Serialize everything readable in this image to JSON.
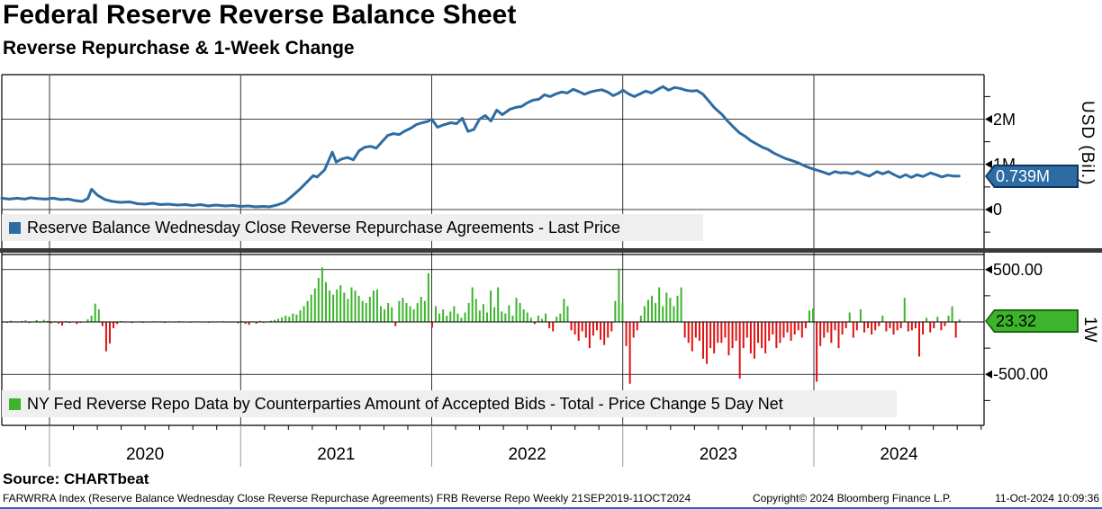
{
  "header": {
    "title": "Federal Reserve Reverse Balance Sheet",
    "subtitle": "Reverse Repurchase & 1-Week Change"
  },
  "source_line": "Source: CHARTbeat",
  "footer": {
    "left": "FARWRRA Index (Reserve Balance Wednesday Close Reverse Repurchase Agreements) FRB Reverse Repo  Weekly 21SEP2019-11OCT2024",
    "copyright": "Copyright© 2024 Bloomberg Finance L.P.",
    "datetime": "11-Oct-2024 10:09:36"
  },
  "colors": {
    "line_blue": "#2d6ca3",
    "badge_blue_border": "#10345c",
    "bar_green": "#3cb42c",
    "badge_green_border": "#1c6a10",
    "bar_red": "#e01111",
    "grid": "#000000",
    "separator": "#3a3a3a",
    "legend_bg": "#efefef",
    "year_tick": "#999999",
    "bottom_edge": "#3461c1"
  },
  "chart_data": [
    {
      "type": "line",
      "legend": "Reserve Balance Wednesday Close Reverse Repurchase Agreements - Last Price",
      "ylabel": "USD (Bil.)",
      "yticks": [
        {
          "label": "2M",
          "value": 2
        },
        {
          "label": "1M",
          "value": 1
        },
        {
          "label": "0",
          "value": 0
        }
      ],
      "minor_yticks": [
        -0.5,
        0.5,
        1.5,
        2.5
      ],
      "ylim": [
        -0.86,
        2.99
      ],
      "x_years": [
        2020,
        2021,
        2022,
        2023,
        2024
      ],
      "x_range_label": "21SEP2019-11OCT2024",
      "grid": true,
      "legend_position": "bottom-left-overlay",
      "last_price_badge": "0.739M",
      "last_value": 0.739,
      "points": [
        [
          2019.75,
          0.25
        ],
        [
          2019.79,
          0.23
        ],
        [
          2019.83,
          0.25
        ],
        [
          2019.87,
          0.23
        ],
        [
          2019.9,
          0.26
        ],
        [
          2019.94,
          0.24
        ],
        [
          2019.98,
          0.23
        ],
        [
          2020.02,
          0.25
        ],
        [
          2020.06,
          0.22
        ],
        [
          2020.1,
          0.23
        ],
        [
          2020.13,
          0.2
        ],
        [
          2020.17,
          0.18
        ],
        [
          2020.2,
          0.24
        ],
        [
          2020.22,
          0.45
        ],
        [
          2020.25,
          0.32
        ],
        [
          2020.29,
          0.22
        ],
        [
          2020.33,
          0.18
        ],
        [
          2020.37,
          0.16
        ],
        [
          2020.42,
          0.17
        ],
        [
          2020.46,
          0.13
        ],
        [
          2020.5,
          0.12
        ],
        [
          2020.54,
          0.14
        ],
        [
          2020.58,
          0.11
        ],
        [
          2020.62,
          0.12
        ],
        [
          2020.67,
          0.1
        ],
        [
          2020.71,
          0.11
        ],
        [
          2020.75,
          0.09
        ],
        [
          2020.79,
          0.11
        ],
        [
          2020.83,
          0.08
        ],
        [
          2020.87,
          0.1
        ],
        [
          2020.92,
          0.08
        ],
        [
          2020.96,
          0.09
        ],
        [
          2021.0,
          0.07
        ],
        [
          2021.04,
          0.08
        ],
        [
          2021.08,
          0.06
        ],
        [
          2021.12,
          0.07
        ],
        [
          2021.15,
          0.06
        ],
        [
          2021.19,
          0.1
        ],
        [
          2021.23,
          0.16
        ],
        [
          2021.27,
          0.3
        ],
        [
          2021.31,
          0.45
        ],
        [
          2021.35,
          0.62
        ],
        [
          2021.38,
          0.75
        ],
        [
          2021.4,
          0.72
        ],
        [
          2021.44,
          0.88
        ],
        [
          2021.48,
          1.27
        ],
        [
          2021.5,
          1.05
        ],
        [
          2021.53,
          1.12
        ],
        [
          2021.56,
          1.15
        ],
        [
          2021.59,
          1.1
        ],
        [
          2021.62,
          1.3
        ],
        [
          2021.65,
          1.38
        ],
        [
          2021.68,
          1.4
        ],
        [
          2021.71,
          1.36
        ],
        [
          2021.74,
          1.5
        ],
        [
          2021.77,
          1.64
        ],
        [
          2021.8,
          1.68
        ],
        [
          2021.83,
          1.66
        ],
        [
          2021.86,
          1.74
        ],
        [
          2021.89,
          1.8
        ],
        [
          2021.92,
          1.88
        ],
        [
          2021.95,
          1.92
        ],
        [
          2021.98,
          1.95
        ],
        [
          2022.0,
          2.0
        ],
        [
          2022.03,
          1.82
        ],
        [
          2022.06,
          1.87
        ],
        [
          2022.1,
          1.92
        ],
        [
          2022.13,
          1.9
        ],
        [
          2022.16,
          2.02
        ],
        [
          2022.19,
          1.73
        ],
        [
          2022.22,
          1.77
        ],
        [
          2022.25,
          2.0
        ],
        [
          2022.28,
          2.08
        ],
        [
          2022.31,
          1.96
        ],
        [
          2022.34,
          2.2
        ],
        [
          2022.37,
          2.1
        ],
        [
          2022.41,
          2.22
        ],
        [
          2022.44,
          2.26
        ],
        [
          2022.47,
          2.28
        ],
        [
          2022.5,
          2.36
        ],
        [
          2022.53,
          2.42
        ],
        [
          2022.56,
          2.44
        ],
        [
          2022.59,
          2.54
        ],
        [
          2022.62,
          2.5
        ],
        [
          2022.65,
          2.56
        ],
        [
          2022.68,
          2.6
        ],
        [
          2022.71,
          2.58
        ],
        [
          2022.74,
          2.66
        ],
        [
          2022.77,
          2.61
        ],
        [
          2022.8,
          2.55
        ],
        [
          2022.83,
          2.6
        ],
        [
          2022.86,
          2.63
        ],
        [
          2022.89,
          2.65
        ],
        [
          2022.92,
          2.6
        ],
        [
          2022.95,
          2.52
        ],
        [
          2022.98,
          2.58
        ],
        [
          2023.0,
          2.64
        ],
        [
          2023.03,
          2.56
        ],
        [
          2023.06,
          2.5
        ],
        [
          2023.09,
          2.56
        ],
        [
          2023.12,
          2.62
        ],
        [
          2023.15,
          2.58
        ],
        [
          2023.18,
          2.65
        ],
        [
          2023.21,
          2.72
        ],
        [
          2023.24,
          2.64
        ],
        [
          2023.27,
          2.7
        ],
        [
          2023.3,
          2.68
        ],
        [
          2023.33,
          2.64
        ],
        [
          2023.36,
          2.62
        ],
        [
          2023.39,
          2.63
        ],
        [
          2023.42,
          2.55
        ],
        [
          2023.45,
          2.4
        ],
        [
          2023.48,
          2.25
        ],
        [
          2023.52,
          2.1
        ],
        [
          2023.55,
          1.95
        ],
        [
          2023.58,
          1.82
        ],
        [
          2023.61,
          1.7
        ],
        [
          2023.64,
          1.62
        ],
        [
          2023.67,
          1.52
        ],
        [
          2023.7,
          1.45
        ],
        [
          2023.73,
          1.38
        ],
        [
          2023.76,
          1.33
        ],
        [
          2023.79,
          1.25
        ],
        [
          2023.82,
          1.19
        ],
        [
          2023.85,
          1.13
        ],
        [
          2023.88,
          1.09
        ],
        [
          2023.92,
          1.03
        ],
        [
          2023.95,
          0.97
        ],
        [
          2023.98,
          0.92
        ],
        [
          2024.01,
          0.88
        ],
        [
          2024.04,
          0.84
        ],
        [
          2024.08,
          0.78
        ],
        [
          2024.11,
          0.84
        ],
        [
          2024.14,
          0.81
        ],
        [
          2024.17,
          0.82
        ],
        [
          2024.2,
          0.79
        ],
        [
          2024.23,
          0.84
        ],
        [
          2024.26,
          0.78
        ],
        [
          2024.29,
          0.74
        ],
        [
          2024.33,
          0.84
        ],
        [
          2024.36,
          0.79
        ],
        [
          2024.39,
          0.84
        ],
        [
          2024.42,
          0.77
        ],
        [
          2024.45,
          0.71
        ],
        [
          2024.48,
          0.77
        ],
        [
          2024.51,
          0.71
        ],
        [
          2024.54,
          0.77
        ],
        [
          2024.57,
          0.73
        ],
        [
          2024.61,
          0.81
        ],
        [
          2024.64,
          0.77
        ],
        [
          2024.67,
          0.72
        ],
        [
          2024.7,
          0.76
        ],
        [
          2024.73,
          0.74
        ],
        [
          2024.76,
          0.739
        ]
      ]
    },
    {
      "type": "bar",
      "legend": "NY Fed Reverse Repo Data by Counterparties Amount of Accepted Bids - Total - Price Change 5 Day Net",
      "ylabel": "1W",
      "yticks": [
        {
          "label": "500.00",
          "value": 500
        },
        {
          "label": "-500.00",
          "value": -500
        }
      ],
      "minor_yticks": [
        250,
        -250,
        -750
      ],
      "ylim": [
        -987,
        644
      ],
      "grid": true,
      "legend_position": "bottom-left-overlay",
      "last_price_badge": "23.32",
      "last_value": 23.32,
      "frequency": "weekly",
      "start_year": 2019.745,
      "weekly_values": [
        5,
        -8,
        12,
        6,
        -5,
        9,
        15,
        -10,
        4,
        18,
        -6,
        20,
        10,
        -12,
        6,
        -15,
        -35,
        8,
        -10,
        5,
        -20,
        -8,
        4,
        25,
        60,
        175,
        120,
        -40,
        -280,
        -205,
        -60,
        -20,
        8,
        -6,
        5,
        -10,
        4,
        6,
        -8,
        3,
        -5,
        7,
        -4,
        6,
        -9,
        5,
        3,
        -6,
        8,
        -5,
        4,
        -7,
        5,
        6,
        -4,
        3,
        -8,
        6,
        -5,
        4,
        7,
        -6,
        5,
        -4,
        -12,
        8,
        -18,
        -28,
        6,
        -15,
        10,
        -8,
        5,
        12,
        20,
        30,
        45,
        60,
        50,
        80,
        70,
        110,
        150,
        200,
        260,
        320,
        420,
        520,
        380,
        300,
        260,
        310,
        350,
        280,
        220,
        330,
        300,
        250,
        200,
        180,
        240,
        300,
        310,
        150,
        120,
        180,
        140,
        -40,
        200,
        230,
        180,
        150,
        120,
        180,
        240,
        200,
        465,
        -55,
        150,
        80,
        120,
        60,
        100,
        150,
        80,
        40,
        90,
        180,
        330,
        220,
        110,
        170,
        90,
        300,
        140,
        330,
        100,
        80,
        160,
        60,
        230,
        180,
        120,
        90,
        40,
        -20,
        60,
        30,
        80,
        -60,
        -90,
        50,
        80,
        220,
        150,
        -80,
        -120,
        -180,
        -90,
        -150,
        -250,
        -130,
        -80,
        -170,
        -220,
        -150,
        -90,
        200,
        510,
        180,
        -230,
        -590,
        -150,
        -80,
        60,
        150,
        210,
        250,
        180,
        330,
        150,
        280,
        230,
        150,
        250,
        330,
        -150,
        -200,
        -280,
        -150,
        -180,
        -350,
        -400,
        -250,
        -300,
        -200,
        -200,
        -150,
        -320,
        -250,
        -180,
        -540,
        -250,
        -150,
        -300,
        -350,
        -200,
        -250,
        -300,
        -180,
        -120,
        -250,
        -200,
        -150,
        -100,
        -180,
        -120,
        -80,
        -150,
        -60,
        110,
        130,
        -570,
        -230,
        -150,
        -100,
        -200,
        -80,
        -250,
        -120,
        -60,
        90,
        -150,
        -80,
        120,
        -100,
        -60,
        -120,
        -80,
        -40,
        60,
        -90,
        -60,
        -120,
        -80,
        -60,
        230,
        -90,
        -80,
        -60,
        -330,
        -120,
        40,
        -100,
        -60,
        50,
        -80,
        -40,
        60,
        150,
        -150,
        23.32
      ]
    }
  ]
}
